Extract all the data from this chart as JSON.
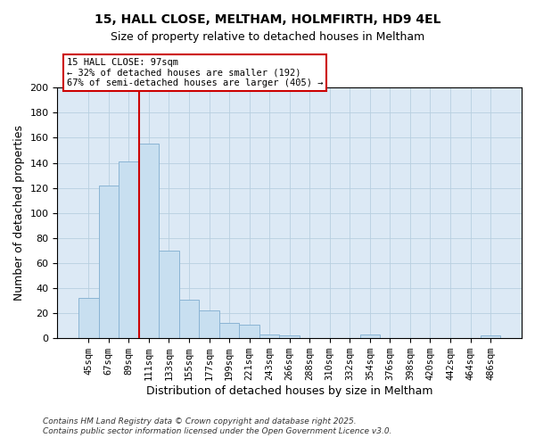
{
  "title": "15, HALL CLOSE, MELTHAM, HOLMFIRTH, HD9 4EL",
  "subtitle": "Size of property relative to detached houses in Meltham",
  "xlabel": "Distribution of detached houses by size in Meltham",
  "ylabel": "Number of detached properties",
  "categories": [
    "45sqm",
    "67sqm",
    "89sqm",
    "111sqm",
    "133sqm",
    "155sqm",
    "177sqm",
    "199sqm",
    "221sqm",
    "243sqm",
    "266sqm",
    "288sqm",
    "310sqm",
    "332sqm",
    "354sqm",
    "376sqm",
    "398sqm",
    "420sqm",
    "442sqm",
    "464sqm",
    "486sqm"
  ],
  "values": [
    32,
    122,
    141,
    155,
    70,
    31,
    22,
    12,
    11,
    3,
    2,
    0,
    0,
    0,
    3,
    0,
    0,
    0,
    0,
    0,
    2
  ],
  "bar_color": "#c8dff0",
  "bar_edge_color": "#8ab4d4",
  "ylim": [
    0,
    200
  ],
  "yticks": [
    0,
    20,
    40,
    60,
    80,
    100,
    120,
    140,
    160,
    180,
    200
  ],
  "vline_x_index": 2,
  "vline_color": "#cc0000",
  "annotation_title": "15 HALL CLOSE: 97sqm",
  "annotation_line1": "← 32% of detached houses are smaller (192)",
  "annotation_line2": "67% of semi-detached houses are larger (405) →",
  "annotation_box_color": "#ffffff",
  "annotation_box_edge": "#cc0000",
  "footer1": "Contains HM Land Registry data © Crown copyright and database right 2025.",
  "footer2": "Contains public sector information licensed under the Open Government Licence v3.0.",
  "background_color": "#ffffff",
  "plot_bg_color": "#dce9f5",
  "grid_color": "#b8cfe0"
}
